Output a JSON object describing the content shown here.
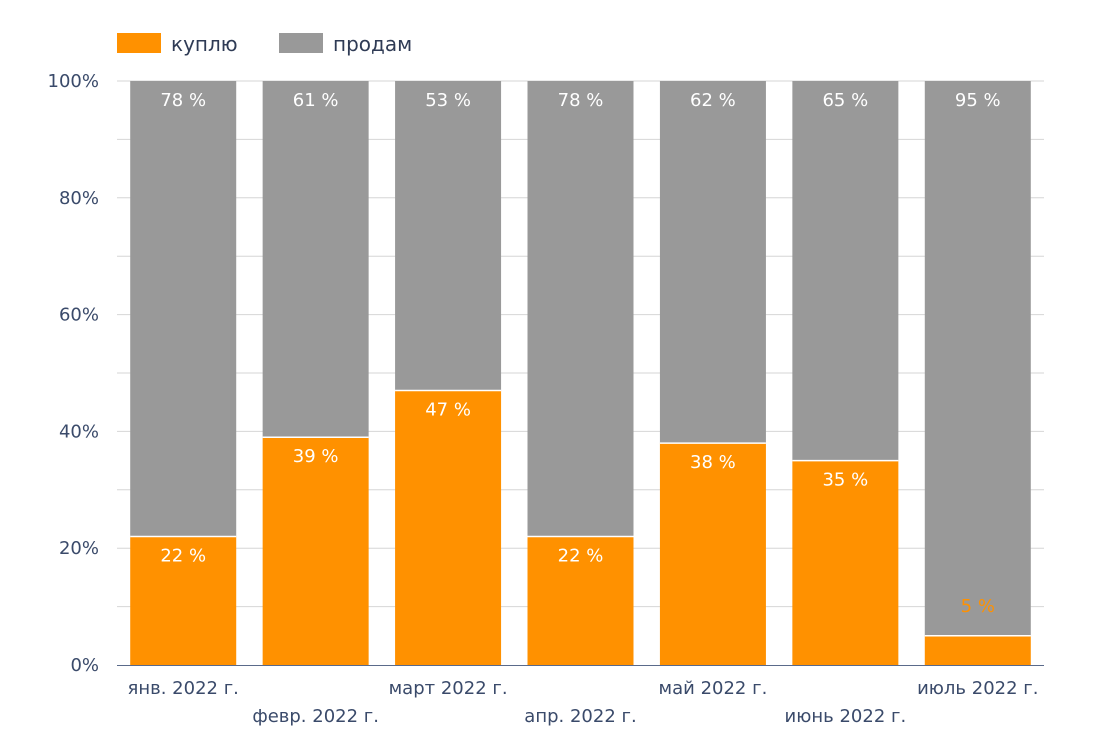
{
  "chart_data": {
    "type": "bar",
    "stacked": true,
    "categories": [
      "янв. 2022 г.",
      "февр. 2022 г.",
      "март 2022 г.",
      "апр. 2022 г.",
      "май 2022 г.",
      "июнь 2022 г.",
      "июль 2022 г."
    ],
    "series": [
      {
        "name": "куплю",
        "color": "#ff9100",
        "values": [
          22,
          39,
          47,
          22,
          38,
          35,
          5
        ],
        "labels": [
          "22 %",
          "39 %",
          "47 %",
          "22 %",
          "38 %",
          "35 %",
          "5 %"
        ]
      },
      {
        "name": "продам",
        "color": "#999999",
        "values": [
          78,
          61,
          53,
          78,
          62,
          65,
          95
        ],
        "labels": [
          "78 %",
          "61 %",
          "53 %",
          "78 %",
          "62 %",
          "65 %",
          "95 %"
        ]
      }
    ],
    "ylim": [
      0,
      100
    ],
    "yticks": [
      "0%",
      "20%",
      "40%",
      "60%",
      "80%",
      "100%"
    ],
    "grid": true,
    "legend": "top-left",
    "title": "",
    "xlabel": "",
    "ylabel": ""
  }
}
